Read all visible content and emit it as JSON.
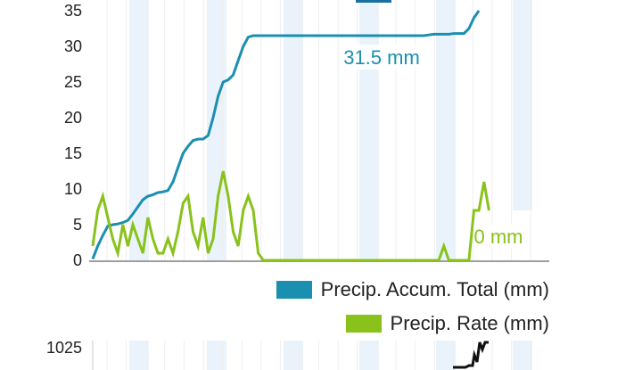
{
  "chart_data": {
    "type": "line",
    "yticks": [
      "35",
      "30",
      "25",
      "20",
      "15",
      "10",
      "5",
      "0"
    ],
    "ylim": [
      0,
      35
    ],
    "x_count": 81,
    "series": [
      {
        "name": "Precip. Accum. Total (mm)",
        "color": "#1b8fb0",
        "values": [
          0.2,
          2.0,
          3.5,
          4.8,
          5.0,
          5.1,
          5.3,
          5.6,
          6.5,
          7.5,
          8.5,
          9.0,
          9.2,
          9.5,
          9.6,
          9.8,
          11.0,
          13.0,
          15.0,
          16.0,
          16.8,
          17.0,
          17.0,
          17.5,
          20.0,
          23.0,
          25.0,
          25.3,
          26.0,
          28.0,
          30.0,
          31.3,
          31.5,
          31.5,
          31.5,
          31.5,
          31.5,
          31.5,
          31.5,
          31.5,
          31.5,
          31.5,
          31.5,
          31.5,
          31.5,
          31.5,
          31.5,
          31.5,
          31.5,
          31.5,
          31.5,
          31.5,
          31.5,
          31.5,
          31.5,
          31.5,
          31.5,
          31.5,
          31.5,
          31.5,
          31.5,
          31.5,
          31.5,
          31.5,
          31.5,
          31.5,
          31.5,
          31.6,
          31.7,
          31.7,
          31.7,
          31.7,
          31.8,
          31.8,
          31.8,
          32.5,
          34.0,
          35.0
        ]
      },
      {
        "name": "Precip. Rate (mm)",
        "color": "#88c21a",
        "values": [
          2,
          7,
          9,
          6,
          3,
          1,
          5,
          2,
          5,
          3,
          1,
          6,
          3,
          1,
          1,
          3,
          1,
          4,
          8,
          9,
          4,
          2,
          6,
          1,
          3,
          9,
          12.5,
          9,
          4,
          2,
          7,
          9,
          7,
          1,
          0,
          0,
          0,
          0,
          0,
          0,
          0,
          0,
          0,
          0,
          0,
          0,
          0,
          0,
          0,
          0,
          0,
          0,
          0,
          0,
          0,
          0,
          0,
          0,
          0,
          0,
          0,
          0,
          0,
          0,
          0,
          0,
          0,
          0,
          0,
          0,
          2,
          0,
          0,
          0,
          0,
          0,
          7,
          7,
          11,
          7
        ]
      }
    ],
    "annotations": [
      {
        "series": 0,
        "text": "31.5 mm"
      },
      {
        "series": 1,
        "text": "0 mm"
      }
    ],
    "next_chart_ytick": "1025"
  }
}
